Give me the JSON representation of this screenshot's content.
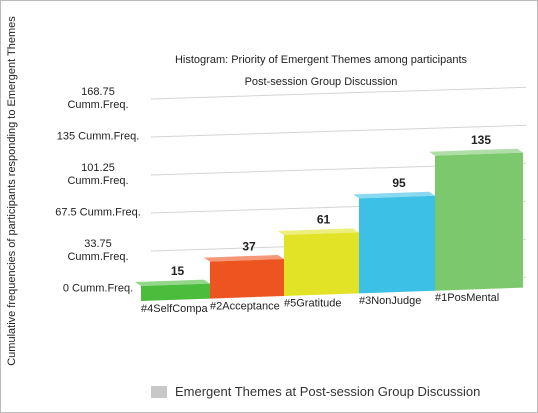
{
  "chart_data": {
    "type": "bar",
    "title": "Histogram: Priority of Emergent Themes among participants",
    "subtitle": "Post-session Group Discussion",
    "y_label": "Cumulative frequencies of participants responding to Emergent Themes",
    "legend": "Emergent Themes at Post-session Group Discussion",
    "categories": [
      "#4SelfCompa",
      "#2Acceptance",
      "#5Gratitude",
      "#3NonJudge",
      "#1PosMental"
    ],
    "values": [
      15,
      37,
      61,
      95,
      135
    ],
    "colors": [
      "#4cbc3c",
      "#ee5420",
      "#e2e226",
      "#3cc0e6",
      "#7cc86c"
    ],
    "ylim": [
      0,
      168.75
    ],
    "yticks": [
      {
        "value": 0,
        "label": "0 Cumm.Freq."
      },
      {
        "value": 33.75,
        "label": "33.75\nCumm.Freq."
      },
      {
        "value": 67.5,
        "label": "67.5 Cumm.Freq."
      },
      {
        "value": 101.25,
        "label": "101.25\nCumm.Freq."
      },
      {
        "value": 135,
        "label": "135 Cumm.Freq."
      },
      {
        "value": 168.75,
        "label": "168.75\nCumm.Freq."
      }
    ],
    "grid": true
  }
}
